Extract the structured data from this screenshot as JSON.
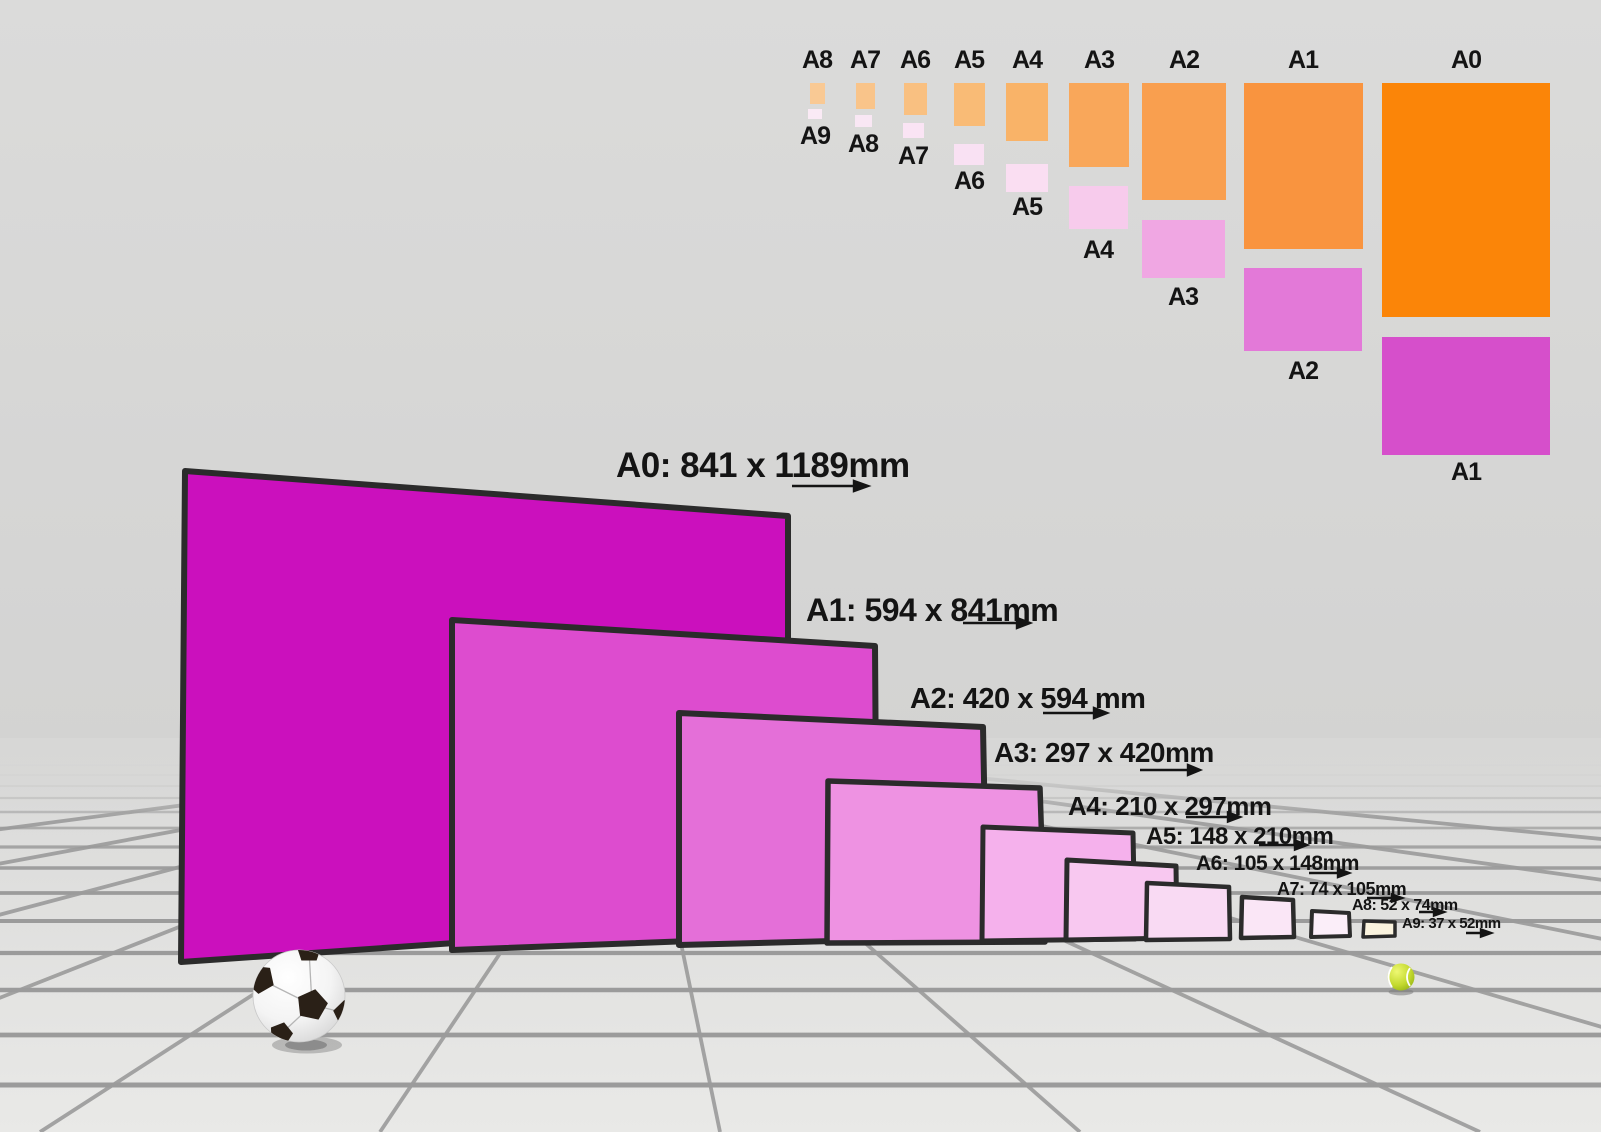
{
  "palette": {
    "wall": "#d7d7d6",
    "floor_near": "#e9e9e7",
    "floor_far": "#d9d9d8",
    "grid_line": "#9b9b9b",
    "paper_border": "#2b2b2b",
    "text": "#141414"
  },
  "size_chart": {
    "columns": [
      {
        "top_label": "A8",
        "bottom_label": "A9",
        "portrait_color": "#f9c994",
        "landscape_color": "#faeaf5"
      },
      {
        "top_label": "A7",
        "bottom_label": "A8",
        "portrait_color": "#f9c48a",
        "landscape_color": "#f9e7f4"
      },
      {
        "top_label": "A6",
        "bottom_label": "A7",
        "portrait_color": "#f9c081",
        "landscape_color": "#fae4f4"
      },
      {
        "top_label": "A5",
        "bottom_label": "A6",
        "portrait_color": "#f9bb76",
        "landscape_color": "#f9e1f3"
      },
      {
        "top_label": "A4",
        "bottom_label": "A5",
        "portrait_color": "#f9b368",
        "landscape_color": "#fadef2"
      },
      {
        "top_label": "A3",
        "bottom_label": "A4",
        "portrait_color": "#f9a75a",
        "landscape_color": "#f7cbec"
      },
      {
        "top_label": "A2",
        "bottom_label": "A3",
        "portrait_color": "#f99f4f",
        "landscape_color": "#f0a7e3"
      },
      {
        "top_label": "A1",
        "bottom_label": "A2",
        "portrait_color": "#f9943f",
        "landscape_color": "#e379d8"
      },
      {
        "top_label": "A0",
        "bottom_label": "A1",
        "portrait_color": "#fb8508",
        "landscape_color": "#d64fcb"
      }
    ]
  },
  "papers": [
    {
      "name": "A0",
      "label": "A0: 841 x 1189mm",
      "color": "#cb10bd"
    },
    {
      "name": "A1",
      "label": "A1: 594 x 841mm",
      "color": "#dd4ccf"
    },
    {
      "name": "A2",
      "label": "A2: 420 x 594 mm",
      "color": "#e46fd8"
    },
    {
      "name": "A3",
      "label": "A3: 297 x 420mm",
      "color": "#ee92e2"
    },
    {
      "name": "A4",
      "label": "A4: 210 x 297mm",
      "color": "#f5b1ec"
    },
    {
      "name": "A5",
      "label": "A5: 148 x 210mm",
      "color": "#f8c8f0"
    },
    {
      "name": "A6",
      "label": "A6: 105 x 148mm",
      "color": "#f9daf3"
    },
    {
      "name": "A7",
      "label": "A7: 74 x 105mm",
      "color": "#fae6f6"
    },
    {
      "name": "A8",
      "label": "A8: 52 x 74mm",
      "color": "#fbeef9"
    },
    {
      "name": "A9",
      "label": "A9:  37 x 52mm",
      "color": "#faf3de"
    }
  ],
  "objects": {
    "soccer_ball": {
      "body": "#ffffff",
      "patch": "#2a2017"
    },
    "tennis_ball": {
      "body": "#c3d92e",
      "seam": "#ffffff"
    }
  }
}
